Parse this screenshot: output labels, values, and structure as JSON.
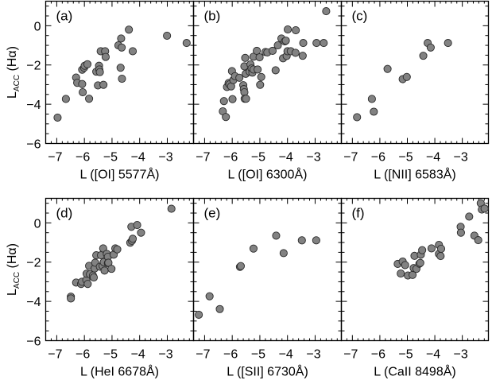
{
  "chart_data": [
    {
      "type": "scatter",
      "panel_label": "(a)",
      "xlabel": "L ([OI] 5577Å)",
      "ylabel": {
        "main": "L",
        "sub": "ACC",
        "rest": " (Hα)"
      },
      "xlim": [
        -7.4,
        -2.05
      ],
      "ylim": [
        -6,
        1.25
      ],
      "xticks": [
        -7,
        -6,
        -5,
        -4,
        -3
      ],
      "yticks": [
        0,
        -2,
        -4,
        -6
      ],
      "points": [
        [
          -6.97,
          -4.68
        ],
        [
          -6.67,
          -3.73
        ],
        [
          -6.3,
          -2.64
        ],
        [
          -6.26,
          -2.91
        ],
        [
          -6.08,
          -2.97
        ],
        [
          -6.06,
          -3.39
        ],
        [
          -6.08,
          -2.24
        ],
        [
          -6.01,
          -2.14
        ],
        [
          -5.99,
          -2.04
        ],
        [
          -5.89,
          -1.96
        ],
        [
          -5.83,
          -3.72
        ],
        [
          -5.57,
          -2.34
        ],
        [
          -5.51,
          -3.04
        ],
        [
          -5.47,
          -2.04
        ],
        [
          -5.46,
          -2.23
        ],
        [
          -5.44,
          -2.36
        ],
        [
          -5.41,
          -1.3
        ],
        [
          -5.31,
          -3.01
        ],
        [
          -5.25,
          -1.3
        ],
        [
          -5.23,
          -1.59
        ],
        [
          -4.77,
          -1.0
        ],
        [
          -4.69,
          -2.14
        ],
        [
          -4.67,
          -0.65
        ],
        [
          -4.65,
          -1.11
        ],
        [
          -4.64,
          -2.7
        ],
        [
          -4.39,
          -0.2
        ],
        [
          -4.25,
          -1.3
        ],
        [
          -3.01,
          -0.51
        ],
        [
          -2.3,
          -0.88
        ]
      ]
    },
    {
      "type": "scatter",
      "panel_label": "(b)",
      "xlabel": "L ([OI] 6300Å)",
      "xlim": [
        -7.4,
        -2.05
      ],
      "ylim": [
        -6,
        1.25
      ],
      "xticks": [
        -7,
        -6,
        -5,
        -4,
        -3
      ],
      "points": [
        [
          -6.34,
          -4.36
        ],
        [
          -6.23,
          -4.65
        ],
        [
          -6.3,
          -3.84
        ],
        [
          -6.19,
          -3.12
        ],
        [
          -6.13,
          -2.92
        ],
        [
          -6.1,
          -2.99
        ],
        [
          -6.04,
          -3.09
        ],
        [
          -6.01,
          -2.31
        ],
        [
          -5.99,
          -3.74
        ],
        [
          -5.96,
          -2.77
        ],
        [
          -5.9,
          -2.57
        ],
        [
          -5.74,
          -2.65
        ],
        [
          -5.6,
          -3.03
        ],
        [
          -5.58,
          -3.23
        ],
        [
          -5.56,
          -3.39
        ],
        [
          -5.55,
          -3.72
        ],
        [
          -5.5,
          -3.72
        ],
        [
          -5.56,
          -2.07
        ],
        [
          -5.53,
          -1.64
        ],
        [
          -5.51,
          -2.45
        ],
        [
          -5.37,
          -2.34
        ],
        [
          -5.34,
          -1.97
        ],
        [
          -5.3,
          -2.18
        ],
        [
          -5.27,
          -2.39
        ],
        [
          -5.23,
          -2.23
        ],
        [
          -5.23,
          -1.58
        ],
        [
          -5.11,
          -1.28
        ],
        [
          -5.08,
          -2.23
        ],
        [
          -5.01,
          -1.61
        ],
        [
          -4.95,
          -2.61
        ],
        [
          -4.99,
          -3.01
        ],
        [
          -4.8,
          -1.34
        ],
        [
          -4.73,
          -1.36
        ],
        [
          -4.54,
          -1.28
        ],
        [
          -4.43,
          -2.27
        ],
        [
          -4.35,
          -1.0
        ],
        [
          -4.22,
          -0.65
        ],
        [
          -4.16,
          -1.66
        ],
        [
          -4.1,
          -0.8
        ],
        [
          -4.06,
          -0.76
        ],
        [
          -4.03,
          -1.54
        ],
        [
          -4.0,
          -1.3
        ],
        [
          -3.99,
          -0.19
        ],
        [
          -3.88,
          -1.3
        ],
        [
          -3.71,
          -1.38
        ],
        [
          -3.7,
          -0.23
        ],
        [
          -3.45,
          -1.53
        ],
        [
          -3.43,
          -0.88
        ],
        [
          -2.95,
          -0.88
        ],
        [
          -2.69,
          -0.88
        ],
        [
          -2.6,
          0.74
        ]
      ]
    },
    {
      "type": "scatter",
      "panel_label": "(c)",
      "xlabel": "L ([NII] 6583Å)",
      "xlim": [
        -7.4,
        -2.05
      ],
      "ylim": [
        -6,
        1.25
      ],
      "xticks": [
        -7,
        -6,
        -5,
        -4,
        -3
      ],
      "points": [
        [
          -6.83,
          -4.66
        ],
        [
          -6.29,
          -3.73
        ],
        [
          -6.22,
          -4.38
        ],
        [
          -5.72,
          -2.2
        ],
        [
          -5.17,
          -2.72
        ],
        [
          -5.02,
          -2.61
        ],
        [
          -4.42,
          -1.53
        ],
        [
          -4.26,
          -0.88
        ],
        [
          -4.15,
          -1.11
        ],
        [
          -3.52,
          -0.88
        ]
      ]
    },
    {
      "type": "scatter",
      "panel_label": "(d)",
      "xlabel": "L (HeI 6678Å)",
      "ylabel": {
        "main": "L",
        "sub": "ACC",
        "rest": " (Hα)"
      },
      "xlim": [
        -7.4,
        -2.05
      ],
      "ylim": [
        -6,
        1.25
      ],
      "xticks": [
        -7,
        -6,
        -5,
        -4,
        -3
      ],
      "yticks": [
        0,
        -2,
        -4,
        -6
      ],
      "points": [
        [
          -6.49,
          -3.76
        ],
        [
          -6.49,
          -3.85
        ],
        [
          -6.3,
          -3.04
        ],
        [
          -6.12,
          -3.11
        ],
        [
          -6.09,
          -3.0
        ],
        [
          -5.93,
          -2.91
        ],
        [
          -5.92,
          -2.59
        ],
        [
          -5.88,
          -3.11
        ],
        [
          -5.83,
          -2.19
        ],
        [
          -5.8,
          -2.62
        ],
        [
          -5.69,
          -2.68
        ],
        [
          -5.66,
          -2.78
        ],
        [
          -5.63,
          -2.32
        ],
        [
          -5.61,
          -2.03
        ],
        [
          -5.57,
          -1.65
        ],
        [
          -5.44,
          -2.23
        ],
        [
          -5.4,
          -1.65
        ],
        [
          -5.34,
          -2.19
        ],
        [
          -5.32,
          -1.3
        ],
        [
          -5.3,
          -2.0
        ],
        [
          -5.27,
          -2.43
        ],
        [
          -5.19,
          -1.58
        ],
        [
          -5.15,
          -1.73
        ],
        [
          -5.15,
          -2.05
        ],
        [
          -5.13,
          -2.03
        ],
        [
          -5.02,
          -2.34
        ],
        [
          -4.94,
          -1.62
        ],
        [
          -4.88,
          -1.3
        ],
        [
          -4.81,
          -1.35
        ],
        [
          -4.34,
          -1.01
        ],
        [
          -4.28,
          -0.91
        ],
        [
          -4.25,
          -0.81
        ],
        [
          -4.3,
          -0.2
        ],
        [
          -4.09,
          -0.11
        ],
        [
          -3.95,
          -0.5
        ],
        [
          -2.85,
          0.72
        ]
      ]
    },
    {
      "type": "scatter",
      "panel_label": "(e)",
      "xlabel": "L ([SII] 6730Å)",
      "xlim": [
        -7.4,
        -2.05
      ],
      "ylim": [
        -6,
        1.25
      ],
      "xticks": [
        -7,
        -6,
        -5,
        -4,
        -3
      ],
      "points": [
        [
          -7.21,
          -4.68
        ],
        [
          -6.82,
          -3.74
        ],
        [
          -6.45,
          -4.39
        ],
        [
          -5.72,
          -2.24
        ],
        [
          -5.69,
          -2.2
        ],
        [
          -5.23,
          -1.31
        ],
        [
          -4.41,
          -0.65
        ],
        [
          -4.14,
          -1.54
        ],
        [
          -3.48,
          -0.89
        ],
        [
          -2.96,
          -0.89
        ]
      ]
    },
    {
      "type": "scatter",
      "panel_label": "(f)",
      "xlabel": "L (CaII 8498Å)",
      "xlim": [
        -7.4,
        -2.05
      ],
      "ylim": [
        -6,
        1.25
      ],
      "xticks": [
        -7,
        -6,
        -5,
        -4,
        -3
      ],
      "points": [
        [
          -5.35,
          -2.09
        ],
        [
          -5.24,
          -2.58
        ],
        [
          -5.17,
          -1.97
        ],
        [
          -5.08,
          -2.15
        ],
        [
          -4.98,
          -2.68
        ],
        [
          -4.81,
          -2.65
        ],
        [
          -4.77,
          -2.3
        ],
        [
          -4.74,
          -1.68
        ],
        [
          -4.67,
          -2.34
        ],
        [
          -4.56,
          -2.08
        ],
        [
          -4.53,
          -2.04
        ],
        [
          -4.51,
          -1.62
        ],
        [
          -4.46,
          -1.39
        ],
        [
          -4.12,
          -1.3
        ],
        [
          -3.85,
          -1.12
        ],
        [
          -3.85,
          -1.58
        ],
        [
          -3.77,
          -1.32
        ],
        [
          -3.79,
          -1.69
        ],
        [
          -3.06,
          -0.2
        ],
        [
          -3.05,
          -0.5
        ],
        [
          -2.75,
          0.32
        ],
        [
          -2.56,
          -0.65
        ],
        [
          -2.42,
          -0.88
        ],
        [
          -2.33,
          1.0
        ],
        [
          -2.29,
          0.68
        ],
        [
          -2.19,
          0.73
        ]
      ]
    }
  ],
  "colors": {
    "marker_fill": "#828282",
    "marker_edge": "#2a2a2a",
    "axis": "#000000"
  }
}
